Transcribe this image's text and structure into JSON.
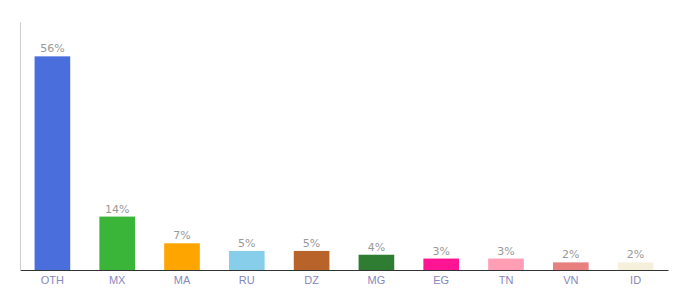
{
  "chart_data": {
    "type": "bar",
    "categories": [
      "OTH",
      "MX",
      "MA",
      "RU",
      "DZ",
      "MG",
      "EG",
      "TN",
      "VN",
      "ID"
    ],
    "values": [
      56,
      14,
      7,
      5,
      5,
      4,
      3,
      3,
      2,
      2
    ],
    "value_labels": [
      "56%",
      "14%",
      "7%",
      "5%",
      "5%",
      "4%",
      "3%",
      "3%",
      "2%",
      "2%"
    ],
    "colors": [
      "#4a6edb",
      "#3ab53a",
      "#ffa500",
      "#87ceeb",
      "#b8632a",
      "#2e7d32",
      "#ff1493",
      "#ff9eb5",
      "#e88080",
      "#f5f0dc"
    ],
    "ylim": [
      0,
      65
    ],
    "data_labels": true,
    "tick_labels": "x",
    "grid": false
  }
}
